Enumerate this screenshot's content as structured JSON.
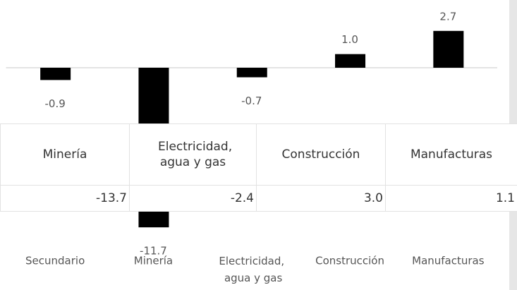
{
  "chart_data": {
    "type": "bar",
    "categories": [
      "Secundario",
      "Minería",
      "Electricidad, agua y gas",
      "Construcción",
      "Manufacturas"
    ],
    "values": [
      -0.9,
      -11.7,
      -0.7,
      1.0,
      2.7
    ],
    "value_labels": [
      "-0.9",
      "-11.7",
      "-0.7",
      "1.0",
      "2.7"
    ],
    "color": "#000000",
    "ylim": [
      -12,
      3
    ]
  },
  "table": {
    "header": [
      "Minería",
      "Electricidad, agua y gas",
      "Construcción",
      "Manufacturas"
    ],
    "rows": [
      [
        "-13.7",
        "-2.4",
        "3.0",
        "1.1"
      ]
    ]
  }
}
